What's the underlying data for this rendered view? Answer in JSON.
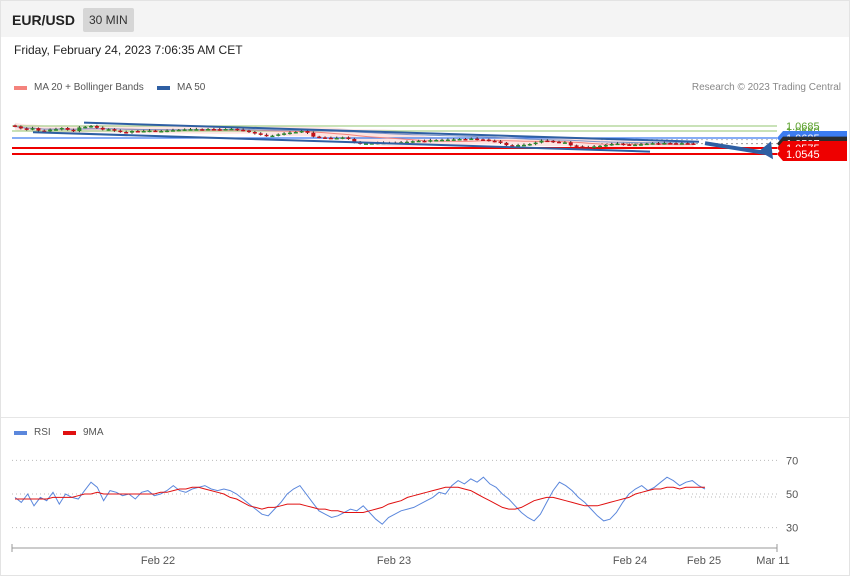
{
  "header": {
    "symbol": "EUR/USD",
    "interval": "30 MIN",
    "datetime": "Friday, February 24, 2023 7:06:35 AM CET"
  },
  "legend": {
    "ma20": {
      "label": "MA 20 + Bollinger Bands",
      "color": "#f4837d"
    },
    "ma50": {
      "label": "MA 50",
      "color": "#2e5fa3"
    },
    "credit": "Research © 2023 Trading Central"
  },
  "rsi_legend": {
    "rsi": {
      "label": "RSI",
      "color": "#5b87dc"
    },
    "ma9": {
      "label": "9MA",
      "color": "#e01010"
    }
  },
  "chart_data": [
    {
      "type": "candlestick",
      "ylim": [
        1.0535,
        1.071
      ],
      "x_tick_labels": [
        "Feb 22",
        "Feb 23",
        "Feb 24",
        "Feb 25",
        "Mar 11"
      ],
      "price_levels": [
        {
          "label": "1.0685",
          "value": 1.0685,
          "color": "#a9d08e",
          "style": "resistance"
        },
        {
          "label": "1.0660",
          "value": 1.066,
          "color": "#a9d08e",
          "style": "resistance"
        },
        {
          "label": "1.0625",
          "value": 1.0625,
          "color": "#3d7cf0",
          "style": "pivot"
        },
        {
          "label": "1.0597",
          "value": 1.0597,
          "color": "#2c2c2c",
          "style": "current"
        },
        {
          "label": "1.0575",
          "value": 1.0575,
          "color": "#ee0000",
          "style": "support"
        },
        {
          "label": "1.0545",
          "value": 1.0545,
          "color": "#ee0000",
          "style": "support"
        }
      ],
      "channel": {
        "upper": [
          [
            1.0702,
            1.0606
          ]
        ],
        "lower": [
          [
            1.0654,
            1.0557
          ]
        ]
      },
      "forecast": {
        "from": 1.0599,
        "to": 1.0549
      },
      "close_prices": [
        1.0683,
        1.0673,
        1.0668,
        1.0674,
        1.0662,
        1.0658,
        1.0667,
        1.0669,
        1.0675,
        1.0666,
        1.066,
        1.0678,
        1.0681,
        1.0685,
        1.0676,
        1.0667,
        1.0669,
        1.0662,
        1.0655,
        1.0652,
        1.066,
        1.0658,
        1.066,
        1.0662,
        1.0659,
        1.066,
        1.0662,
        1.0664,
        1.0666,
        1.0668,
        1.0669,
        1.0669,
        1.0668,
        1.067,
        1.0669,
        1.0667,
        1.067,
        1.0671,
        1.0666,
        1.0662,
        1.0655,
        1.0648,
        1.0641,
        1.0636,
        1.0637,
        1.0643,
        1.0648,
        1.0652,
        1.0655,
        1.066,
        1.0651,
        1.0632,
        1.0628,
        1.0626,
        1.0624,
        1.0625,
        1.0628,
        1.062,
        1.0603,
        1.0598,
        1.0598,
        1.0599,
        1.0601,
        1.0601,
        1.0602,
        1.0601,
        1.0604,
        1.0606,
        1.0609,
        1.0611,
        1.0609,
        1.0614,
        1.0615,
        1.0616,
        1.0617,
        1.0618,
        1.062,
        1.0619,
        1.0622,
        1.0618,
        1.0617,
        1.0611,
        1.0608,
        1.0601,
        1.0589,
        1.0586,
        1.059,
        1.0591,
        1.0595,
        1.0602,
        1.0612,
        1.0611,
        1.0606,
        1.0603,
        1.0603,
        1.0588,
        1.0583,
        1.058,
        1.0577,
        1.0583,
        1.0586,
        1.059,
        1.0595,
        1.0597,
        1.0593,
        1.0591,
        1.0592,
        1.0594,
        1.0597,
        1.0599,
        1.0596,
        1.06,
        1.0599,
        1.0598,
        1.0599,
        1.0598,
        1.0597
      ]
    },
    {
      "type": "line",
      "ylim": [
        20,
        80
      ],
      "y_tick_labels": [
        "70",
        "50",
        "30"
      ],
      "series": [
        {
          "name": "RSI",
          "values": [
            48,
            45,
            50,
            43,
            48,
            46,
            51,
            44,
            50,
            48,
            47,
            52,
            57,
            54,
            46,
            52,
            51,
            49,
            50,
            47,
            51,
            52,
            49,
            50,
            52,
            55,
            52,
            51,
            53,
            54,
            55,
            53,
            52,
            53,
            52,
            50,
            47,
            44,
            41,
            38,
            37,
            41,
            45,
            50,
            53,
            55,
            50,
            45,
            40,
            38,
            36,
            37,
            39,
            41,
            40,
            43,
            39,
            35,
            32,
            36,
            38,
            40,
            41,
            42,
            44,
            46,
            48,
            51,
            50,
            55,
            58,
            56,
            59,
            57,
            60,
            56,
            54,
            50,
            47,
            43,
            39,
            36,
            34,
            38,
            45,
            52,
            57,
            55,
            52,
            48,
            45,
            41,
            37,
            34,
            35,
            39,
            45,
            50,
            53,
            55,
            52,
            54,
            57,
            60,
            58,
            55,
            57,
            58,
            55,
            53
          ]
        },
        {
          "name": "9MA",
          "values": [
            47,
            47,
            47,
            47,
            47,
            47,
            48,
            48,
            48,
            48,
            49,
            50,
            50,
            51,
            50,
            50,
            50,
            50,
            50,
            50,
            50,
            50,
            50,
            51,
            51,
            52,
            53,
            53,
            54,
            54,
            53,
            52,
            51,
            50,
            48,
            47,
            45,
            43,
            42,
            41,
            42,
            42,
            43,
            44,
            44,
            44,
            43,
            42,
            41,
            41,
            40,
            40,
            39,
            39,
            39,
            39,
            40,
            41,
            42,
            44,
            45,
            46,
            48,
            49,
            50,
            51,
            52,
            53,
            54,
            54,
            54,
            53,
            52,
            50,
            48,
            46,
            44,
            42,
            41,
            41,
            42,
            44,
            46,
            47,
            48,
            48,
            47,
            46,
            45,
            44,
            43,
            43,
            43,
            44,
            45,
            46,
            47,
            48,
            50,
            51,
            52,
            53,
            53,
            54,
            54,
            53,
            54,
            54,
            54,
            54
          ]
        }
      ]
    }
  ]
}
